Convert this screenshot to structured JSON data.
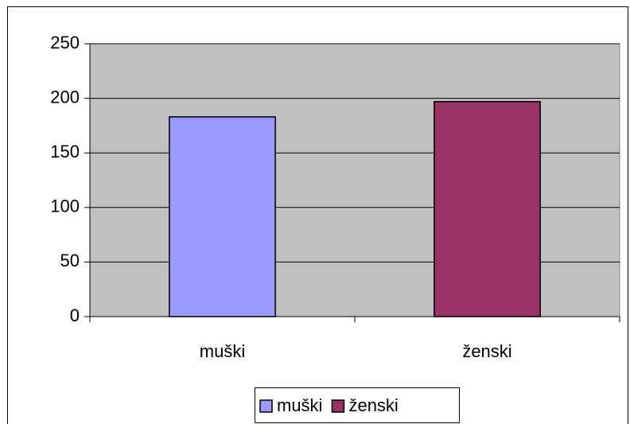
{
  "chart_data": {
    "type": "bar",
    "categories": [
      "muški",
      "ženski"
    ],
    "values": [
      183,
      197
    ],
    "colors": [
      "#9999ff",
      "#993366"
    ],
    "ylim": [
      0,
      250
    ],
    "yticks": [
      0,
      50,
      100,
      150,
      200,
      250
    ],
    "grid": true,
    "legend": "bottom"
  }
}
